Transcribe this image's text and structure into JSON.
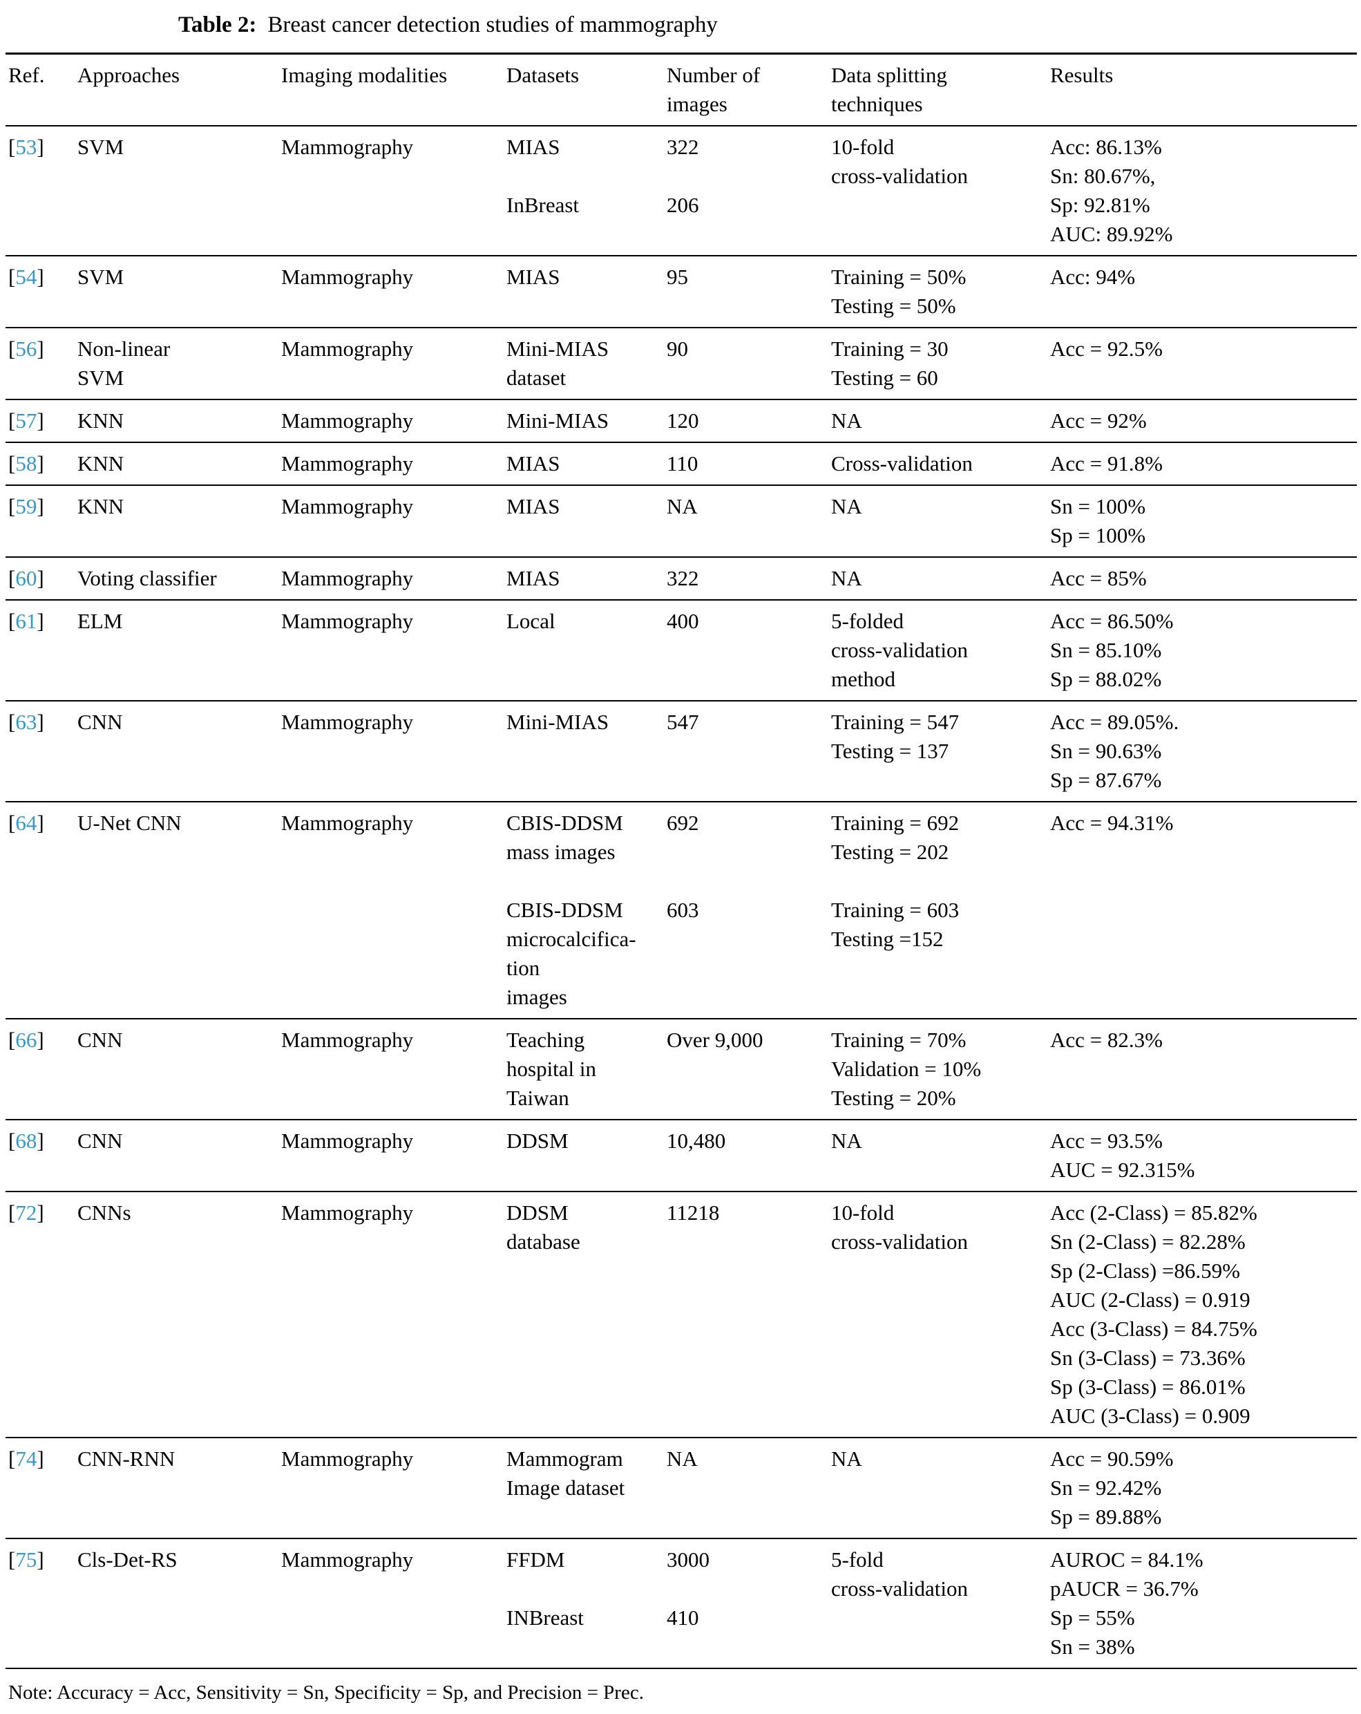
{
  "title": {
    "label": "Table 2:",
    "text": "Breast cancer detection studies of mammography"
  },
  "colors": {
    "citation": "#3398cb",
    "rule": "#000000",
    "text": "#000000",
    "background": "#ffffff"
  },
  "brackets": {
    "open": "[",
    "close": "]"
  },
  "columns": [
    "Ref.",
    "Approaches",
    "Imaging modalities",
    "Datasets",
    "Number of\nimages",
    "Data splitting\ntechniques",
    "Results"
  ],
  "rows": [
    {
      "ref": "53",
      "approach": "SVM",
      "modality": "Mammography",
      "datasets": "MIAS\n\nInBreast",
      "images": "322\n\n206",
      "splitting": "10-fold\ncross-validation",
      "results": "Acc: 86.13%\nSn: 80.67%,\nSp: 92.81%\nAUC: 89.92%"
    },
    {
      "ref": "54",
      "approach": "SVM",
      "modality": "Mammography",
      "datasets": "MIAS",
      "images": "95",
      "splitting": "Training = 50%\nTesting = 50%",
      "results": "Acc: 94%"
    },
    {
      "ref": "56",
      "approach": "Non-linear\nSVM",
      "modality": "Mammography",
      "datasets": "Mini-MIAS\ndataset",
      "images": "90",
      "splitting": "Training = 30\nTesting = 60",
      "results": "Acc = 92.5%"
    },
    {
      "ref": "57",
      "approach": "KNN",
      "modality": "Mammography",
      "datasets": "Mini-MIAS",
      "images": "120",
      "splitting": "NA",
      "results": "Acc = 92%"
    },
    {
      "ref": "58",
      "approach": "KNN",
      "modality": "Mammography",
      "datasets": "MIAS",
      "images": "110",
      "splitting": "Cross-validation",
      "results": "Acc = 91.8%"
    },
    {
      "ref": "59",
      "approach": "KNN",
      "modality": "Mammography",
      "datasets": "MIAS",
      "images": "NA",
      "splitting": "NA",
      "results": "Sn = 100%\nSp = 100%"
    },
    {
      "ref": "60",
      "approach": "Voting classifier",
      "modality": "Mammography",
      "datasets": "MIAS",
      "images": "322",
      "splitting": "NA",
      "results": "Acc = 85%"
    },
    {
      "ref": "61",
      "approach": "ELM",
      "modality": "Mammography",
      "datasets": "Local",
      "images": "400",
      "splitting": "5-folded\ncross-validation\nmethod",
      "results": "Acc = 86.50%\nSn = 85.10%\nSp = 88.02%"
    },
    {
      "ref": "63",
      "approach": "CNN",
      "modality": "Mammography",
      "datasets": "Mini-MIAS",
      "images": "547",
      "splitting": "Training = 547\nTesting = 137",
      "results": "Acc = 89.05%.\nSn = 90.63%\nSp = 87.67%"
    },
    {
      "ref": "64",
      "approach": "U-Net CNN",
      "modality": "Mammography",
      "datasets": "CBIS-DDSM\nmass images\n\nCBIS-DDSM\nmicrocalcifica-\ntion\nimages",
      "images": "692\n\n\n603",
      "splitting": "Training = 692\nTesting = 202\n\nTraining = 603\nTesting =152",
      "results": "Acc = 94.31%"
    },
    {
      "ref": "66",
      "approach": "CNN",
      "modality": "Mammography",
      "datasets": "Teaching\nhospital in\nTaiwan",
      "images": "Over 9,000",
      "splitting": "Training = 70%\nValidation = 10%\nTesting = 20%",
      "results": "Acc = 82.3%"
    },
    {
      "ref": "68",
      "approach": "CNN",
      "modality": "Mammography",
      "datasets": "DDSM",
      "images": "10,480",
      "splitting": "NA",
      "results": "Acc = 93.5%\nAUC = 92.315%"
    },
    {
      "ref": "72",
      "approach": "CNNs",
      "modality": "Mammography",
      "datasets": "DDSM\ndatabase",
      "images": "11218",
      "splitting": "10-fold\ncross-validation",
      "results": "Acc (2-Class) = 85.82%\nSn (2-Class) = 82.28%\nSp (2-Class) =86.59%\nAUC (2-Class) = 0.919\nAcc (3-Class) = 84.75%\nSn (3-Class) = 73.36%\nSp (3-Class) = 86.01%\nAUC (3-Class) = 0.909"
    },
    {
      "ref": "74",
      "approach": "CNN-RNN",
      "modality": "Mammography",
      "datasets": "Mammogram\nImage dataset",
      "images": "NA",
      "splitting": "NA",
      "results": "Acc = 90.59%\nSn = 92.42%\nSp = 89.88%"
    },
    {
      "ref": "75",
      "approach": "Cls-Det-RS",
      "modality": "Mammography",
      "datasets": "FFDM\n\nINBreast",
      "images": "3000\n\n410",
      "splitting": "5-fold\ncross-validation",
      "results": "AUROC = 84.1%\npAUCR = 36.7%\nSp = 55%\nSn = 38%"
    }
  ],
  "note": "Note: Accuracy = Acc, Sensitivity = Sn, Specificity = Sp, and Precision = Prec."
}
